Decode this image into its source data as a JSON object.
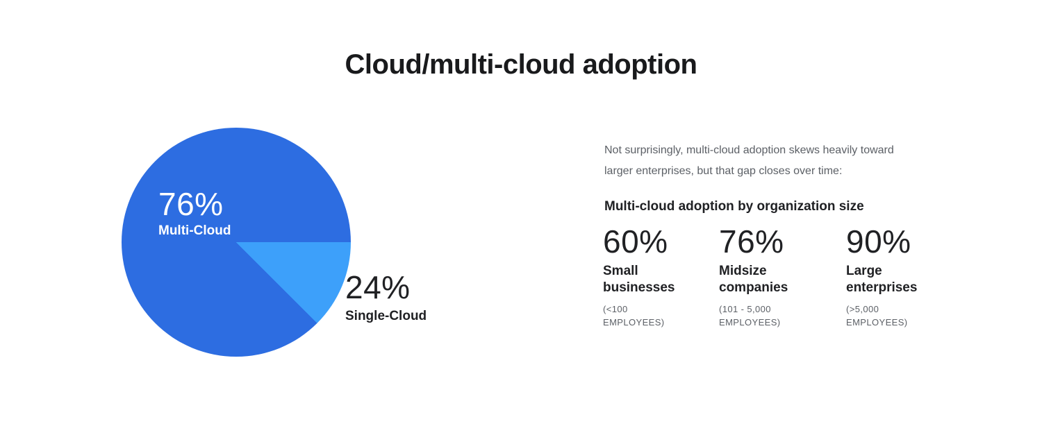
{
  "title": "Cloud/multi-cloud adoption",
  "pie": {
    "multi": {
      "value_label": "76%",
      "label": "Multi-Cloud",
      "color": "#2d6de1"
    },
    "single": {
      "value_label": "24%",
      "label": "Single-Cloud",
      "color": "#3da0fa"
    }
  },
  "panel": {
    "intro": "Not surprisingly, multi-cloud adoption skews heavily toward\nlarger enterprises, but that gap closes over time:",
    "heading": "Multi-cloud adoption by organization size",
    "stats": [
      {
        "value": "60%",
        "label": "Small\nbusinesses",
        "detail": "(<100\nEMPLOYEES)"
      },
      {
        "value": "76%",
        "label": "Midsize\ncompanies",
        "detail": "(101 - 5,000\nEMPLOYEES)"
      },
      {
        "value": "90%",
        "label": "Large\nenterprises",
        "detail": "(>5,000\nEMPLOYEES)"
      }
    ]
  },
  "chart_data": [
    {
      "type": "pie",
      "title": "Cloud/multi-cloud adoption",
      "labels": [
        "Multi-Cloud",
        "Single-Cloud"
      ],
      "values": [
        76,
        24
      ],
      "unit": "%",
      "colors": [
        "#2d6de1",
        "#3da0fa"
      ],
      "legend_position": "on-chart",
      "notes": "Single-Cloud wedge drawn starting at 3 o'clock sweeping ~45 degrees clockwise"
    },
    {
      "type": "table",
      "title": "Multi-cloud adoption by organization size",
      "categories": [
        "Small businesses (<100 employees)",
        "Midsize companies (101 - 5,000 employees)",
        "Large enterprises (>5,000 employees)"
      ],
      "values": [
        60,
        76,
        90
      ],
      "unit": "%"
    }
  ]
}
